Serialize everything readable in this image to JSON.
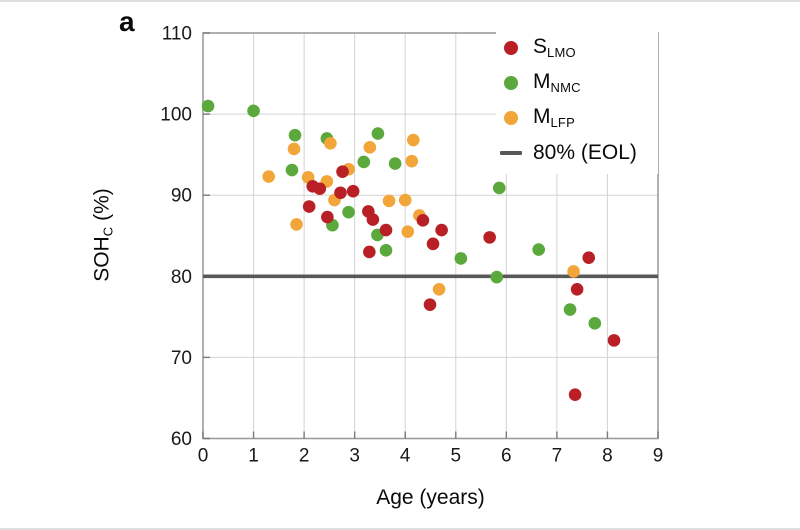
{
  "page": {
    "panel_label": "a"
  },
  "chart_data": {
    "type": "scatter",
    "title": "",
    "xlabel": "Age (years)",
    "ylabel": {
      "main": "SOH",
      "sub": "C",
      "unit": " (%)"
    },
    "xlim": [
      0,
      9
    ],
    "ylim": [
      60,
      110
    ],
    "x_ticks": [
      0,
      1,
      2,
      3,
      4,
      5,
      6,
      7,
      8,
      9
    ],
    "y_ticks": [
      60,
      70,
      80,
      90,
      100,
      110
    ],
    "grid": true,
    "legend_position": "top-right",
    "eol_line": {
      "value": 80,
      "color": "#58585a",
      "label": "80% (EOL)"
    },
    "legend": [
      {
        "main": "S",
        "sub": "LMO",
        "color": "#b92025",
        "marker": "dot"
      },
      {
        "main": "M",
        "sub": "NMC",
        "color": "#5ba83c",
        "marker": "dot"
      },
      {
        "main": "M",
        "sub": "LFP",
        "color": "#f2a63a",
        "marker": "dot"
      },
      {
        "main": "80% (EOL)",
        "sub": "",
        "color": "#58585a",
        "marker": "line"
      }
    ],
    "series": [
      {
        "name": "S_LMO",
        "color": "#b92025",
        "z": 2,
        "points": [
          [
            2.17,
            91.1
          ],
          [
            2.31,
            90.8
          ],
          [
            2.76,
            92.9
          ],
          [
            2.72,
            90.3
          ],
          [
            2.97,
            90.5
          ],
          [
            2.1,
            88.6
          ],
          [
            2.46,
            87.3
          ],
          [
            3.27,
            88.0
          ],
          [
            3.36,
            87.0
          ],
          [
            3.29,
            83.0
          ],
          [
            3.62,
            85.7
          ],
          [
            4.35,
            86.9
          ],
          [
            4.55,
            84.0
          ],
          [
            4.72,
            85.7
          ],
          [
            5.67,
            84.8
          ],
          [
            4.49,
            76.5
          ],
          [
            7.63,
            82.3
          ],
          [
            7.4,
            78.4
          ],
          [
            8.13,
            72.1
          ],
          [
            7.36,
            65.4
          ]
        ]
      },
      {
        "name": "M_NMC",
        "color": "#5ba83c",
        "z": 0,
        "points": [
          [
            0.1,
            101.0
          ],
          [
            1.0,
            100.4
          ],
          [
            1.76,
            93.1
          ],
          [
            1.82,
            97.4
          ],
          [
            2.45,
            97.0
          ],
          [
            2.56,
            86.3
          ],
          [
            2.88,
            87.9
          ],
          [
            3.18,
            94.1
          ],
          [
            3.46,
            97.6
          ],
          [
            3.45,
            85.1
          ],
          [
            3.62,
            83.2
          ],
          [
            3.8,
            93.9
          ],
          [
            5.1,
            82.2
          ],
          [
            5.81,
            79.9
          ],
          [
            5.86,
            90.9
          ],
          [
            6.64,
            83.3
          ],
          [
            7.26,
            75.9
          ],
          [
            7.75,
            74.2
          ]
        ]
      },
      {
        "name": "M_LFP",
        "color": "#f2a63a",
        "z": 1,
        "points": [
          [
            1.3,
            92.3
          ],
          [
            1.8,
            95.7
          ],
          [
            1.85,
            86.4
          ],
          [
            2.08,
            92.2
          ],
          [
            2.45,
            91.7
          ],
          [
            2.52,
            96.4
          ],
          [
            2.6,
            89.4
          ],
          [
            2.88,
            93.2
          ],
          [
            3.3,
            95.9
          ],
          [
            3.68,
            89.3
          ],
          [
            4.0,
            89.4
          ],
          [
            4.05,
            85.5
          ],
          [
            4.13,
            94.2
          ],
          [
            4.16,
            96.8
          ],
          [
            4.28,
            87.5
          ],
          [
            4.67,
            78.4
          ],
          [
            7.33,
            80.6
          ]
        ]
      }
    ],
    "style": {
      "grid_color": "#d4d4d4",
      "border_color": "#9c9c9c",
      "tick_color": "#7a7a7a",
      "tick_label_color": "#1a1a1a",
      "marker_radius": 6.3
    }
  }
}
